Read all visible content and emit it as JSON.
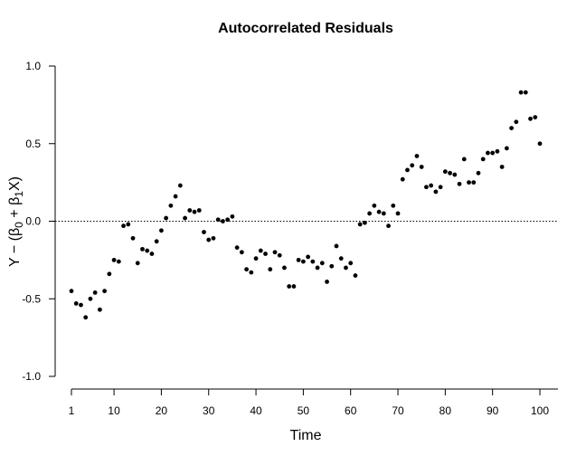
{
  "chart_data": {
    "type": "scatter",
    "title": "Autocorrelated Residuals",
    "xlabel": "Time",
    "ylabel": "Y − (β₀ + β₁X)",
    "ylabel_parts": [
      "Y − (β",
      "0",
      " + β",
      "1",
      "X)"
    ],
    "xlim": [
      1,
      100
    ],
    "ylim": [
      -1.0,
      1.0
    ],
    "x_ticks": [
      1,
      10,
      20,
      30,
      40,
      50,
      60,
      70,
      80,
      90,
      100
    ],
    "x_tick_labels": [
      "1",
      "10",
      "20",
      "30",
      "40",
      "50",
      "60",
      "70",
      "80",
      "90",
      "100"
    ],
    "y_ticks": [
      -1.0,
      -0.5,
      0.0,
      0.5,
      1.0
    ],
    "y_tick_labels": [
      "-1.0",
      "-0.5",
      "0.0",
      "0.5",
      "1.0"
    ],
    "reference_line_y": 0,
    "grid": false,
    "x": [
      1,
      2,
      3,
      4,
      5,
      6,
      7,
      8,
      9,
      10,
      11,
      12,
      13,
      14,
      15,
      16,
      17,
      18,
      19,
      20,
      21,
      22,
      23,
      24,
      25,
      26,
      27,
      28,
      29,
      30,
      31,
      32,
      33,
      34,
      35,
      36,
      37,
      38,
      39,
      40,
      41,
      42,
      43,
      44,
      45,
      46,
      47,
      48,
      49,
      50,
      51,
      52,
      53,
      54,
      55,
      56,
      57,
      58,
      59,
      60,
      61,
      62,
      63,
      64,
      65,
      66,
      67,
      68,
      69,
      70,
      71,
      72,
      73,
      74,
      75,
      76,
      77,
      78,
      79,
      80,
      81,
      82,
      83,
      84,
      85,
      86,
      87,
      88,
      89,
      90,
      91,
      92,
      93,
      94,
      95,
      96,
      97,
      98,
      99,
      100
    ],
    "y": [
      -0.45,
      -0.53,
      -0.54,
      -0.62,
      -0.5,
      -0.46,
      -0.57,
      -0.45,
      -0.34,
      -0.25,
      -0.26,
      -0.03,
      -0.02,
      -0.11,
      -0.27,
      -0.18,
      -0.19,
      -0.21,
      -0.13,
      -0.06,
      0.02,
      0.1,
      0.16,
      0.23,
      0.02,
      0.07,
      0.06,
      0.07,
      -0.07,
      -0.12,
      -0.11,
      0.01,
      0.0,
      0.01,
      0.03,
      -0.17,
      -0.2,
      -0.31,
      -0.33,
      -0.24,
      -0.19,
      -0.21,
      -0.31,
      -0.2,
      -0.22,
      -0.3,
      -0.42,
      -0.42,
      -0.25,
      -0.26,
      -0.23,
      -0.26,
      -0.3,
      -0.27,
      -0.39,
      -0.29,
      -0.16,
      -0.24,
      -0.3,
      -0.27,
      -0.35,
      -0.02,
      -0.01,
      0.05,
      0.1,
      0.06,
      0.05,
      -0.03,
      0.1,
      0.05,
      0.27,
      0.33,
      0.36,
      0.42,
      0.35,
      0.22,
      0.23,
      0.19,
      0.22,
      0.32,
      0.31,
      0.3,
      0.24,
      0.4,
      0.25,
      0.25,
      0.31,
      0.4,
      0.44,
      0.44,
      0.45,
      0.35,
      0.47,
      0.6,
      0.64,
      0.83,
      0.83,
      0.66,
      0.67,
      0.5
    ]
  }
}
